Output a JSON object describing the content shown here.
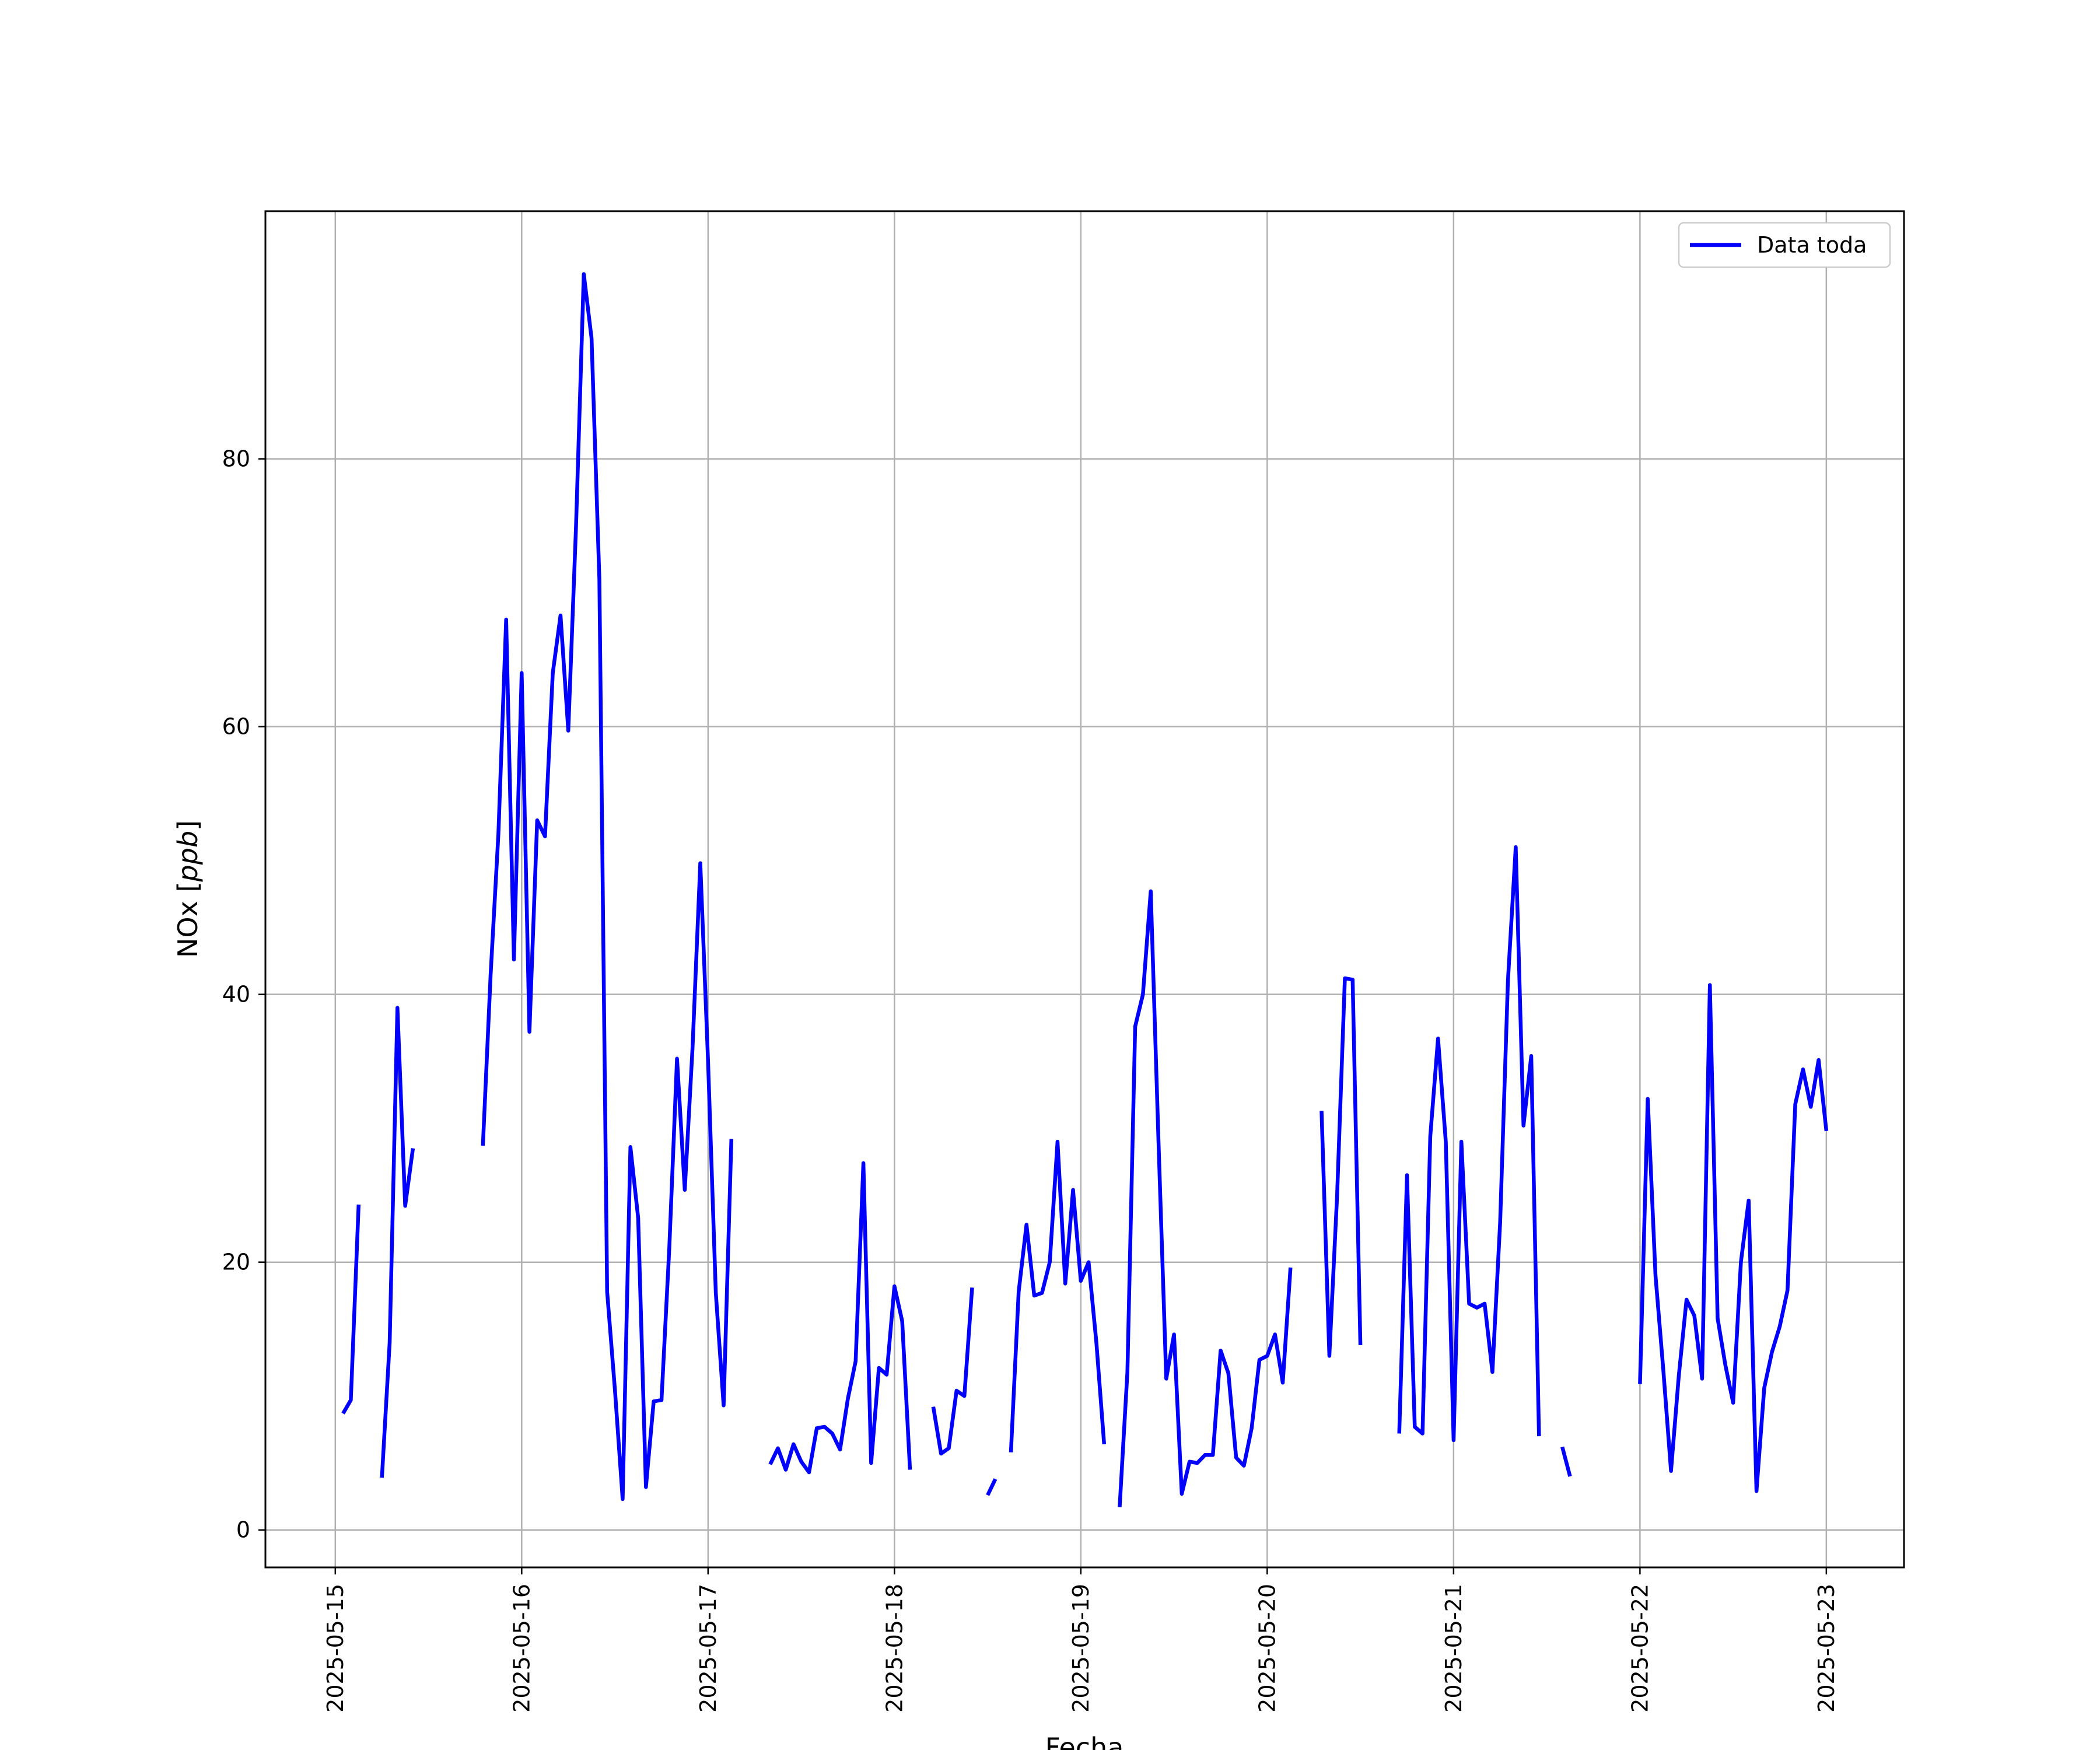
{
  "chart_data": {
    "type": "line",
    "xlabel": "Fecha",
    "ylabel": "NOx [ppb]",
    "ylabel_text": "NOx [",
    "ylabel_unit": "ppb",
    "ylabel_close": "]",
    "grid": true,
    "legend_placement": "top-right",
    "xlim": [
      "2025-05-14 15:00",
      "2025-05-23 10:00"
    ],
    "ylim": [
      -2.8,
      98.5
    ],
    "x_ticks": [
      "2025-05-15",
      "2025-05-16",
      "2025-05-17",
      "2025-05-18",
      "2025-05-19",
      "2025-05-20",
      "2025-05-21",
      "2025-05-22",
      "2025-05-23"
    ],
    "y_ticks": [
      0,
      20,
      40,
      60,
      80
    ],
    "colors": {
      "series": "#0000ff",
      "grid": "#b0b0b0",
      "axes": "#000000"
    },
    "series": [
      {
        "name": "Data toda",
        "segments": [
          [
            [
              "2025-05-15 01:00",
              8.7
            ],
            [
              "2025-05-15 02:00",
              9.7
            ],
            [
              "2025-05-15 03:00",
              24.3
            ]
          ],
          [
            [
              "2025-05-15 06:00",
              3.9
            ],
            [
              "2025-05-15 07:00",
              14.0
            ],
            [
              "2025-05-15 08:00",
              39.0
            ],
            [
              "2025-05-15 09:00",
              24.2
            ],
            [
              "2025-05-15 10:00",
              28.5
            ]
          ],
          [
            [
              "2025-05-15 19:00",
              28.7
            ],
            [
              "2025-05-15 20:00",
              41.5
            ],
            [
              "2025-05-15 21:00",
              52.0
            ],
            [
              "2025-05-15 22:00",
              68.0
            ],
            [
              "2025-05-15 23:00",
              42.6
            ],
            [
              "2025-05-16 00:00",
              64.0
            ],
            [
              "2025-05-16 01:00",
              37.2
            ],
            [
              "2025-05-16 02:00",
              53.0
            ],
            [
              "2025-05-16 03:00",
              51.8
            ],
            [
              "2025-05-16 04:00",
              64.0
            ],
            [
              "2025-05-16 05:00",
              68.3
            ],
            [
              "2025-05-16 06:00",
              59.7
            ],
            [
              "2025-05-16 07:00",
              75.0
            ],
            [
              "2025-05-16 08:00",
              93.8
            ],
            [
              "2025-05-16 09:00",
              89.0
            ],
            [
              "2025-05-16 10:00",
              71.0
            ],
            [
              "2025-05-16 11:00",
              17.8
            ],
            [
              "2025-05-16 12:00",
              10.5
            ],
            [
              "2025-05-16 13:00",
              2.3
            ],
            [
              "2025-05-16 14:00",
              28.6
            ],
            [
              "2025-05-16 15:00",
              23.3
            ],
            [
              "2025-05-16 16:00",
              3.2
            ],
            [
              "2025-05-16 17:00",
              9.6
            ],
            [
              "2025-05-16 18:00",
              9.7
            ],
            [
              "2025-05-16 19:00",
              21.0
            ],
            [
              "2025-05-16 20:00",
              35.2
            ],
            [
              "2025-05-16 21:00",
              25.4
            ],
            [
              "2025-05-16 22:00",
              36.0
            ],
            [
              "2025-05-16 23:00",
              49.8
            ],
            [
              "2025-05-17 00:00",
              35.0
            ],
            [
              "2025-05-17 01:00",
              17.7
            ],
            [
              "2025-05-17 02:00",
              9.3
            ],
            [
              "2025-05-17 03:00",
              29.2
            ]
          ],
          [
            [
              "2025-05-17 08:00",
              4.9
            ],
            [
              "2025-05-17 09:00",
              6.1
            ],
            [
              "2025-05-17 10:00",
              4.5
            ],
            [
              "2025-05-17 11:00",
              6.4
            ],
            [
              "2025-05-17 12:00",
              5.1
            ],
            [
              "2025-05-17 13:00",
              4.3
            ],
            [
              "2025-05-17 14:00",
              7.6
            ],
            [
              "2025-05-17 15:00",
              7.7
            ],
            [
              "2025-05-17 16:00",
              7.2
            ],
            [
              "2025-05-17 17:00",
              6.0
            ],
            [
              "2025-05-17 18:00",
              9.8
            ],
            [
              "2025-05-17 19:00",
              12.6
            ],
            [
              "2025-05-17 20:00",
              27.4
            ],
            [
              "2025-05-17 21:00",
              5.0
            ],
            [
              "2025-05-17 22:00",
              12.1
            ],
            [
              "2025-05-17 23:00",
              11.6
            ],
            [
              "2025-05-18 00:00",
              18.2
            ],
            [
              "2025-05-18 01:00",
              15.6
            ],
            [
              "2025-05-18 02:00",
              4.5
            ]
          ],
          [
            [
              "2025-05-18 05:00",
              9.2
            ],
            [
              "2025-05-18 06:00",
              5.7
            ],
            [
              "2025-05-18 07:00",
              6.1
            ],
            [
              "2025-05-18 08:00",
              10.4
            ],
            [
              "2025-05-18 09:00",
              10.0
            ],
            [
              "2025-05-18 10:00",
              18.1
            ]
          ],
          [
            [
              "2025-05-18 12:00",
              2.6
            ],
            [
              "2025-05-18 13:00",
              3.8
            ]
          ],
          [
            [
              "2025-05-18 15:00",
              5.8
            ],
            [
              "2025-05-18 16:00",
              17.8
            ],
            [
              "2025-05-18 17:00",
              22.8
            ],
            [
              "2025-05-18 18:00",
              17.5
            ],
            [
              "2025-05-18 19:00",
              17.7
            ],
            [
              "2025-05-18 20:00",
              20.0
            ],
            [
              "2025-05-18 21:00",
              29.0
            ],
            [
              "2025-05-18 22:00",
              18.4
            ],
            [
              "2025-05-18 23:00",
              25.4
            ],
            [
              "2025-05-19 00:00",
              18.6
            ],
            [
              "2025-05-19 01:00",
              20.0
            ],
            [
              "2025-05-19 02:00",
              14.0
            ],
            [
              "2025-05-19 03:00",
              6.4
            ]
          ],
          [
            [
              "2025-05-19 05:00",
              1.7
            ],
            [
              "2025-05-19 06:00",
              11.8
            ],
            [
              "2025-05-19 07:00",
              37.6
            ],
            [
              "2025-05-19 08:00",
              40.0
            ],
            [
              "2025-05-19 09:00",
              47.7
            ],
            [
              "2025-05-19 10:00",
              29.0
            ],
            [
              "2025-05-19 11:00",
              11.3
            ],
            [
              "2025-05-19 12:00",
              14.6
            ],
            [
              "2025-05-19 13:00",
              2.7
            ],
            [
              "2025-05-19 14:00",
              5.1
            ],
            [
              "2025-05-19 15:00",
              5.0
            ],
            [
              "2025-05-19 16:00",
              5.6
            ],
            [
              "2025-05-19 17:00",
              5.6
            ],
            [
              "2025-05-19 18:00",
              13.4
            ],
            [
              "2025-05-19 19:00",
              11.7
            ],
            [
              "2025-05-19 20:00",
              5.4
            ],
            [
              "2025-05-19 21:00",
              4.8
            ],
            [
              "2025-05-19 22:00",
              7.6
            ],
            [
              "2025-05-19 23:00",
              12.7
            ],
            [
              "2025-05-20 00:00",
              13.0
            ],
            [
              "2025-05-20 01:00",
              14.6
            ],
            [
              "2025-05-20 02:00",
              11.0
            ],
            [
              "2025-05-20 03:00",
              19.6
            ]
          ],
          [
            [
              "2025-05-20 07:00",
              31.3
            ],
            [
              "2025-05-20 08:00",
              13.0
            ],
            [
              "2025-05-20 09:00",
              25.0
            ],
            [
              "2025-05-20 10:00",
              41.2
            ],
            [
              "2025-05-20 11:00",
              41.1
            ],
            [
              "2025-05-20 12:00",
              13.8
            ]
          ],
          [
            [
              "2025-05-20 17:00",
              7.2
            ],
            [
              "2025-05-20 18:00",
              26.5
            ],
            [
              "2025-05-20 19:00",
              7.7
            ],
            [
              "2025-05-20 20:00",
              7.2
            ],
            [
              "2025-05-20 21:00",
              29.4
            ],
            [
              "2025-05-20 22:00",
              36.7
            ],
            [
              "2025-05-20 23:00",
              29.0
            ],
            [
              "2025-05-21 00:00",
              6.7
            ],
            [
              "2025-05-21 01:00",
              29.0
            ],
            [
              "2025-05-21 02:00",
              16.9
            ],
            [
              "2025-05-21 03:00",
              16.6
            ],
            [
              "2025-05-21 04:00",
              16.9
            ],
            [
              "2025-05-21 05:00",
              11.8
            ],
            [
              "2025-05-21 06:00",
              23.0
            ],
            [
              "2025-05-21 07:00",
              41.0
            ],
            [
              "2025-05-21 08:00",
              51.0
            ],
            [
              "2025-05-21 09:00",
              30.2
            ],
            [
              "2025-05-21 10:00",
              35.4
            ],
            [
              "2025-05-21 11:00",
              7.0
            ]
          ],
          [
            [
              "2025-05-21 14:00",
              6.2
            ],
            [
              "2025-05-21 15:00",
              4.0
            ]
          ],
          [
            [
              "2025-05-22 00:00",
              10.9
            ],
            [
              "2025-05-22 01:00",
              32.2
            ],
            [
              "2025-05-22 02:00",
              19.0
            ],
            [
              "2025-05-22 03:00",
              12.0
            ],
            [
              "2025-05-22 04:00",
              4.4
            ],
            [
              "2025-05-22 05:00",
              11.5
            ],
            [
              "2025-05-22 06:00",
              17.2
            ],
            [
              "2025-05-22 07:00",
              16.0
            ],
            [
              "2025-05-22 08:00",
              11.3
            ],
            [
              "2025-05-22 09:00",
              40.7
            ],
            [
              "2025-05-22 10:00",
              15.8
            ],
            [
              "2025-05-22 11:00",
              12.3
            ],
            [
              "2025-05-22 12:00",
              9.5
            ],
            [
              "2025-05-22 13:00",
              20.0
            ],
            [
              "2025-05-22 14:00",
              24.6
            ],
            [
              "2025-05-22 15:00",
              2.9
            ],
            [
              "2025-05-22 16:00",
              10.6
            ],
            [
              "2025-05-22 17:00",
              13.3
            ],
            [
              "2025-05-22 18:00",
              15.2
            ],
            [
              "2025-05-22 19:00",
              17.9
            ],
            [
              "2025-05-22 20:00",
              31.8
            ],
            [
              "2025-05-22 21:00",
              34.4
            ],
            [
              "2025-05-22 22:00",
              31.6
            ],
            [
              "2025-05-22 23:00",
              35.1
            ],
            [
              "2025-05-23 00:00",
              29.8
            ]
          ]
        ]
      }
    ]
  }
}
